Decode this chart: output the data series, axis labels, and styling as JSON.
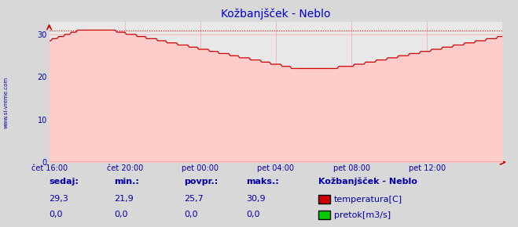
{
  "title": "Kožbanjšček - Neblo",
  "bg_color": "#d8d8d8",
  "plot_bg_color": "#e8e8e8",
  "grid_color": "#ffaaaa",
  "title_color": "#0000cc",
  "axis_color": "#cc0000",
  "label_color": "#0000aa",
  "line_color": "#cc0000",
  "fill_color": "#ffcccc",
  "flow_color": "#00cc00",
  "watermark": "www.si-vreme.com",
  "watermark_color": "#aaaacc",
  "left_label": "www.si-vreme.com",
  "legend_title": "Kožbanjšček - Neblo",
  "legend_items": [
    {
      "label": "temperatura[C]",
      "color": "#cc0000"
    },
    {
      "label": "pretok[m3/s]",
      "color": "#00cc00"
    }
  ],
  "stats_headers": [
    "sedaj:",
    "min.:",
    "povpr.:",
    "maks.:"
  ],
  "stats_temp": [
    "29,3",
    "21,9",
    "25,7",
    "30,9"
  ],
  "stats_flow": [
    "0,0",
    "0,0",
    "0,0",
    "0,0"
  ],
  "max_line_y": 30.9,
  "ylim": [
    0,
    33
  ],
  "xlim": [
    0,
    288
  ],
  "yticks": [
    0,
    10,
    20,
    30
  ],
  "xtick_positions": [
    0,
    48,
    96,
    144,
    192,
    240
  ],
  "xtick_labels": [
    "čet 16:00",
    "čet 20:00",
    "pet 00:00",
    "pet 04:00",
    "pet 08:00",
    "pet 12:00"
  ]
}
